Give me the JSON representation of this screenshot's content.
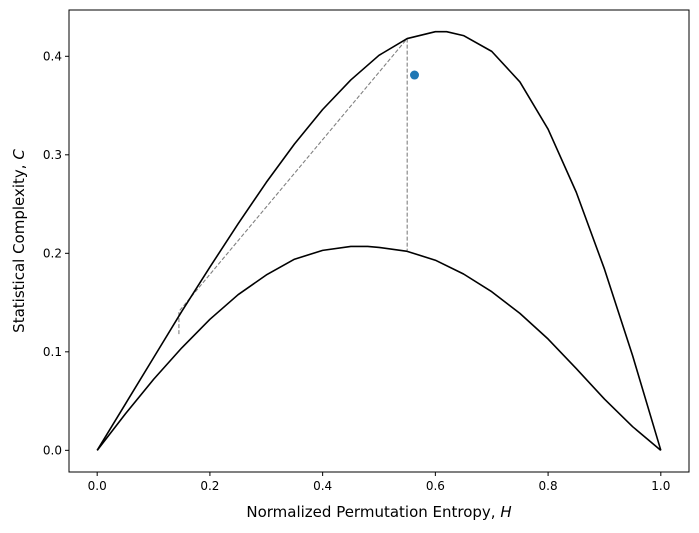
{
  "chart_data": {
    "type": "scatter",
    "title": "",
    "xlabel": "Normalized Permutation Entropy, ",
    "xlabel_var": "H",
    "ylabel": "Statistical Complexity, ",
    "ylabel_var": "C",
    "xlim": [
      -0.05,
      1.05
    ],
    "ylim": [
      -0.022,
      0.447
    ],
    "xticks": [
      0.0,
      0.2,
      0.4,
      0.6,
      0.8,
      1.0
    ],
    "xtick_labels": [
      "0.0",
      "0.2",
      "0.4",
      "0.6",
      "0.8",
      "1.0"
    ],
    "yticks": [
      0.0,
      0.1,
      0.2,
      0.3,
      0.4
    ],
    "ytick_labels": [
      "0.0",
      "0.1",
      "0.2",
      "0.3",
      "0.4"
    ],
    "grid": false,
    "curves": [
      {
        "role": "upper-bound",
        "color": "#000000",
        "points": [
          [
            0.0,
            0.0
          ],
          [
            0.05,
            0.047
          ],
          [
            0.1,
            0.094
          ],
          [
            0.15,
            0.141
          ],
          [
            0.2,
            0.186
          ],
          [
            0.25,
            0.23
          ],
          [
            0.3,
            0.272
          ],
          [
            0.35,
            0.311
          ],
          [
            0.4,
            0.346
          ],
          [
            0.45,
            0.376
          ],
          [
            0.5,
            0.401
          ],
          [
            0.55,
            0.418
          ],
          [
            0.6,
            0.425
          ],
          [
            0.62,
            0.425
          ],
          [
            0.65,
            0.421
          ],
          [
            0.7,
            0.405
          ],
          [
            0.75,
            0.374
          ],
          [
            0.8,
            0.326
          ],
          [
            0.85,
            0.262
          ],
          [
            0.9,
            0.184
          ],
          [
            0.95,
            0.096
          ],
          [
            1.0,
            0.0
          ]
        ]
      },
      {
        "role": "lower-bound",
        "color": "#000000",
        "points": [
          [
            0.0,
            0.0
          ],
          [
            0.05,
            0.037
          ],
          [
            0.1,
            0.072
          ],
          [
            0.15,
            0.104
          ],
          [
            0.2,
            0.133
          ],
          [
            0.25,
            0.158
          ],
          [
            0.3,
            0.178
          ],
          [
            0.35,
            0.194
          ],
          [
            0.4,
            0.203
          ],
          [
            0.45,
            0.207
          ],
          [
            0.48,
            0.207
          ],
          [
            0.5,
            0.206
          ],
          [
            0.55,
            0.202
          ],
          [
            0.6,
            0.193
          ],
          [
            0.65,
            0.179
          ],
          [
            0.7,
            0.161
          ],
          [
            0.75,
            0.139
          ],
          [
            0.8,
            0.113
          ],
          [
            0.85,
            0.083
          ],
          [
            0.9,
            0.052
          ],
          [
            0.95,
            0.024
          ],
          [
            1.0,
            0.0
          ]
        ]
      }
    ],
    "guide_lines": [
      {
        "style": "dashed",
        "color": "#808080",
        "points": [
          [
            0.145,
            0.118
          ],
          [
            0.145,
            0.141
          ],
          [
            0.55,
            0.418
          ]
        ]
      },
      {
        "style": "dashed",
        "color": "#808080",
        "points": [
          [
            0.55,
            0.418
          ],
          [
            0.55,
            0.203
          ]
        ]
      }
    ],
    "series": [
      {
        "color": "#1f77b4",
        "points": [
          [
            0.563,
            0.381
          ]
        ]
      }
    ]
  }
}
